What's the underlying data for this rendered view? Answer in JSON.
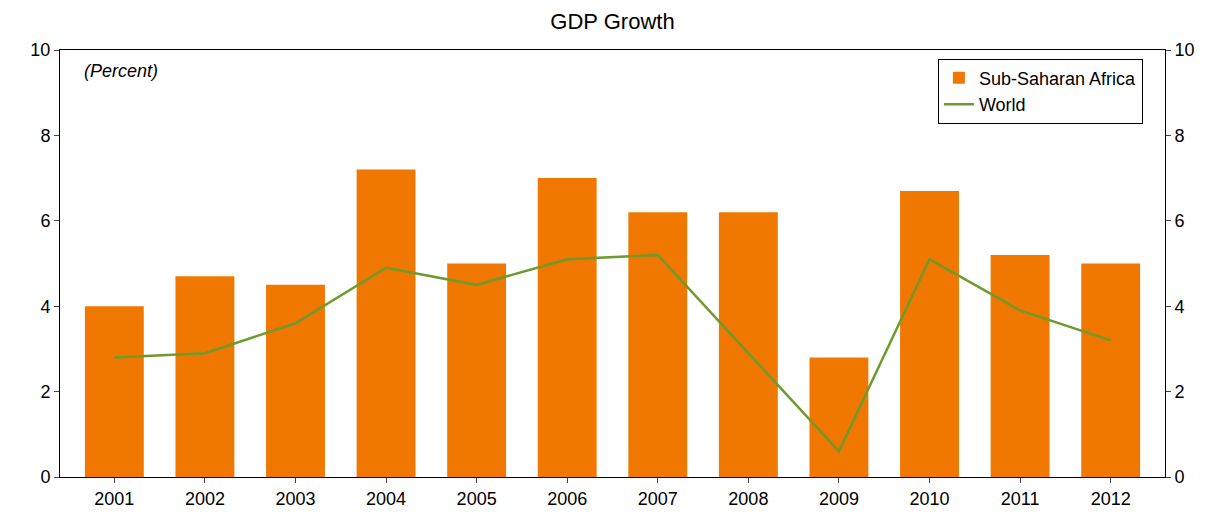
{
  "chart_data": {
    "type": "bar",
    "title": "GDP Growth",
    "subtitle": "(Percent)",
    "categories": [
      "2001",
      "2002",
      "2003",
      "2004",
      "2005",
      "2006",
      "2007",
      "2008",
      "2009",
      "2010",
      "2011",
      "2012"
    ],
    "series": [
      {
        "name": "Sub-Saharan Africa",
        "type": "bar",
        "color": "#f07800",
        "values": [
          4.0,
          4.7,
          4.5,
          7.2,
          5.0,
          7.0,
          6.2,
          6.2,
          2.8,
          6.7,
          5.2,
          5.0
        ]
      },
      {
        "name": "World",
        "type": "line",
        "color": "#6e9a2e",
        "values": [
          2.8,
          2.9,
          3.6,
          4.9,
          4.5,
          5.1,
          5.2,
          2.9,
          0.6,
          5.1,
          3.9,
          3.2
        ]
      }
    ],
    "ylim": [
      0,
      10
    ],
    "yticks": [
      0,
      2,
      4,
      6,
      8,
      10
    ],
    "y2lim": [
      0,
      10
    ],
    "y2ticks": [
      0,
      2,
      4,
      6,
      8,
      10
    ],
    "grid": false,
    "legend": "top-right"
  }
}
